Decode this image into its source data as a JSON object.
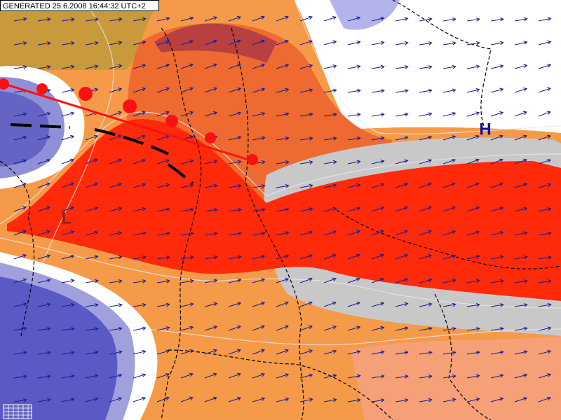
{
  "header": {
    "generated": "GENERATED 25.6.2008 16:44:32 UTC+2"
  },
  "pressure_centers": [
    {
      "label": "L"
    },
    {
      "label": "H"
    }
  ]
}
